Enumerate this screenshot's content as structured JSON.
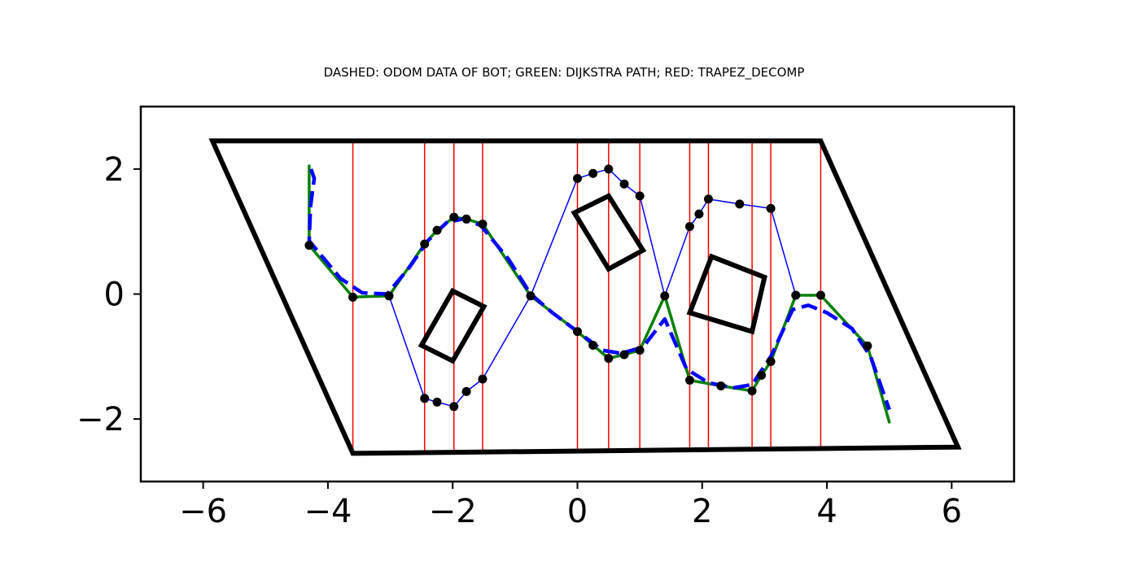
{
  "chart_data": {
    "type": "line",
    "title": "DASHED: ODOM DATA OF BOT; GREEN: DIJKSTRA PATH; RED: TRAPEZ_DECOMP",
    "xlabel": "",
    "ylabel": "",
    "xlim": [
      -7,
      7
    ],
    "ylim": [
      -3,
      3
    ],
    "xticks": [
      -6,
      -4,
      -2,
      0,
      2,
      4,
      6
    ],
    "xtick_labels": [
      "−6",
      "−4",
      "−2",
      "0",
      "2",
      "4",
      "6"
    ],
    "yticks": [
      -2,
      0,
      2
    ],
    "ytick_labels": [
      "−2",
      "0",
      "2"
    ],
    "grid": false,
    "boundary": [
      [
        -5.85,
        2.45
      ],
      [
        3.9,
        2.45
      ],
      [
        6.1,
        -2.45
      ],
      [
        -3.6,
        -2.55
      ]
    ],
    "obstacles": [
      [
        [
          -2.0,
          0.05
        ],
        [
          -1.5,
          -0.2
        ],
        [
          -2.0,
          -1.07
        ],
        [
          -2.5,
          -0.82
        ]
      ],
      [
        [
          0.5,
          1.57
        ],
        [
          1.05,
          0.7
        ],
        [
          0.5,
          0.4
        ],
        [
          -0.05,
          1.3
        ]
      ],
      [
        [
          2.15,
          0.6
        ],
        [
          3.0,
          0.27
        ],
        [
          2.8,
          -0.6
        ],
        [
          1.8,
          -0.3
        ]
      ]
    ],
    "decomposition_lines_x": [
      -3.6,
      -2.45,
      -1.98,
      -1.52,
      0.0,
      0.5,
      1.0,
      1.8,
      2.1,
      2.8,
      3.1,
      3.9
    ],
    "graph_nodes": [
      [
        -4.3,
        0.78
      ],
      [
        -3.6,
        -0.05
      ],
      [
        -3.02,
        -0.03
      ],
      [
        -2.45,
        0.8
      ],
      [
        -2.25,
        1.02
      ],
      [
        -1.98,
        1.23
      ],
      [
        -1.78,
        1.2
      ],
      [
        -1.52,
        1.12
      ],
      [
        -2.45,
        -1.67
      ],
      [
        -2.25,
        -1.73
      ],
      [
        -1.98,
        -1.8
      ],
      [
        -1.78,
        -1.56
      ],
      [
        -1.52,
        -1.36
      ],
      [
        -0.75,
        -0.03
      ],
      [
        0.0,
        -0.6
      ],
      [
        0.25,
        -0.82
      ],
      [
        0.5,
        -1.03
      ],
      [
        0.75,
        -0.97
      ],
      [
        1.0,
        -0.9
      ],
      [
        0.0,
        1.85
      ],
      [
        0.25,
        1.93
      ],
      [
        0.5,
        2.0
      ],
      [
        0.75,
        1.76
      ],
      [
        1.0,
        1.57
      ],
      [
        1.4,
        -0.03
      ],
      [
        1.8,
        1.08
      ],
      [
        1.95,
        1.28
      ],
      [
        2.1,
        1.52
      ],
      [
        2.6,
        1.44
      ],
      [
        3.1,
        1.37
      ],
      [
        1.8,
        -1.38
      ],
      [
        2.3,
        -1.47
      ],
      [
        2.8,
        -1.55
      ],
      [
        2.95,
        -1.3
      ],
      [
        3.1,
        -1.08
      ],
      [
        3.5,
        -0.02
      ],
      [
        3.9,
        -0.02
      ],
      [
        4.65,
        -0.83
      ]
    ],
    "series": [
      {
        "name": "",
        "color": "#0000ff",
        "style": "thin",
        "values": [
          [
            [
              -4.3,
              0.78
            ],
            [
              -3.6,
              -0.05
            ],
            [
              -3.02,
              -0.03
            ],
            [
              -2.45,
              -1.67
            ],
            [
              -2.25,
              -1.73
            ],
            [
              -1.98,
              -1.8
            ],
            [
              -1.78,
              -1.56
            ],
            [
              -1.52,
              -1.36
            ],
            [
              -0.75,
              -0.03
            ]
          ],
          [
            [
              -0.75,
              -0.03
            ],
            [
              0.0,
              1.85
            ],
            [
              0.25,
              1.93
            ],
            [
              0.5,
              2.0
            ],
            [
              0.75,
              1.76
            ],
            [
              1.0,
              1.57
            ],
            [
              1.4,
              -0.03
            ]
          ],
          [
            [
              1.4,
              -0.03
            ],
            [
              1.8,
              1.08
            ],
            [
              1.95,
              1.28
            ],
            [
              2.1,
              1.52
            ],
            [
              2.6,
              1.44
            ],
            [
              3.1,
              1.37
            ],
            [
              3.5,
              -0.02
            ]
          ]
        ]
      },
      {
        "name": "DIJKSTRA PATH",
        "color": "#008000",
        "style": "solid",
        "values": [
          [
            [
              -4.3,
              2.05
            ],
            [
              -4.3,
              0.78
            ],
            [
              -3.6,
              -0.05
            ],
            [
              -3.02,
              -0.03
            ],
            [
              -2.45,
              0.8
            ],
            [
              -2.25,
              1.02
            ],
            [
              -1.98,
              1.23
            ],
            [
              -1.78,
              1.2
            ],
            [
              -1.52,
              1.12
            ],
            [
              -0.75,
              -0.03
            ],
            [
              0.0,
              -0.6
            ],
            [
              0.25,
              -0.82
            ],
            [
              0.5,
              -1.03
            ],
            [
              0.75,
              -0.97
            ],
            [
              1.0,
              -0.9
            ],
            [
              1.4,
              -0.03
            ],
            [
              1.8,
              -1.38
            ],
            [
              2.3,
              -1.47
            ],
            [
              2.8,
              -1.55
            ],
            [
              2.95,
              -1.3
            ],
            [
              3.1,
              -1.08
            ],
            [
              3.5,
              -0.02
            ],
            [
              3.9,
              -0.02
            ],
            [
              4.65,
              -0.83
            ],
            [
              5.0,
              -2.05
            ]
          ]
        ]
      },
      {
        "name": "ODOM DATA OF BOT",
        "color": "#0000ff",
        "style": "dashed",
        "values": [
          [
            [
              -4.27,
              2.0
            ],
            [
              -4.22,
              1.85
            ],
            [
              -4.28,
              1.4
            ],
            [
              -4.3,
              0.85
            ],
            [
              -3.8,
              0.25
            ],
            [
              -3.45,
              0.02
            ],
            [
              -3.05,
              0.0
            ],
            [
              -2.7,
              0.42
            ],
            [
              -2.4,
              0.85
            ],
            [
              -2.1,
              1.14
            ],
            [
              -1.85,
              1.2
            ],
            [
              -1.55,
              1.1
            ],
            [
              -1.1,
              0.55
            ],
            [
              -0.75,
              0.0
            ],
            [
              -0.4,
              -0.3
            ],
            [
              0.0,
              -0.6
            ],
            [
              0.4,
              -0.9
            ],
            [
              0.7,
              -0.95
            ],
            [
              1.05,
              -0.85
            ],
            [
              1.4,
              -0.4
            ],
            [
              1.75,
              -1.2
            ],
            [
              2.1,
              -1.42
            ],
            [
              2.5,
              -1.5
            ],
            [
              2.8,
              -1.45
            ],
            [
              3.1,
              -1.0
            ],
            [
              3.45,
              -0.25
            ],
            [
              3.7,
              -0.18
            ],
            [
              4.0,
              -0.3
            ],
            [
              4.4,
              -0.55
            ],
            [
              4.7,
              -1.0
            ],
            [
              5.0,
              -1.85
            ]
          ]
        ]
      }
    ]
  }
}
